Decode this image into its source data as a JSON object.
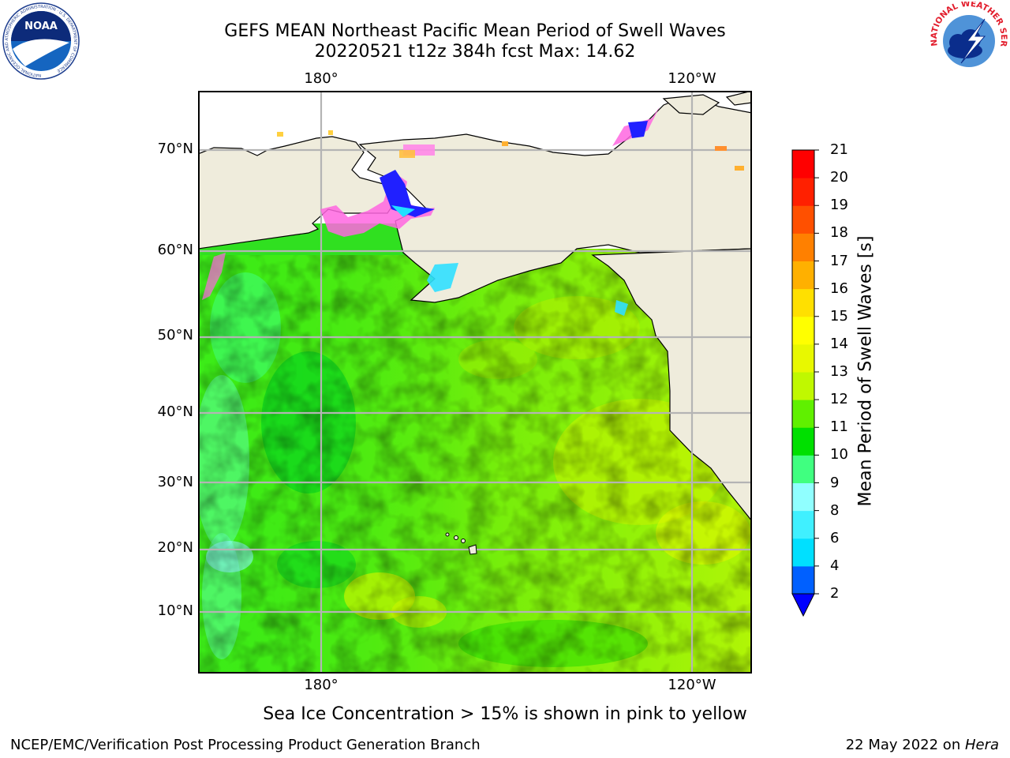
{
  "title": {
    "line1": "GEFS MEAN Northeast Pacific Mean Period of Swell Waves",
    "line2": "20220521 t12z 384h fcst   Max: 14.62"
  },
  "logos": {
    "noaa_text": "NOAA",
    "noaa_ring_text": "NATIONAL OCEANIC AND ATMOSPHERIC ADMINISTRATION · U.S. DEPARTMENT OF COMMERCE",
    "nws_ring_text": "NATIONAL WEATHER SERVICE"
  },
  "map": {
    "lon_labels": [
      "180°",
      "120°W"
    ],
    "lat_labels": [
      "70°N",
      "60°N",
      "50°N",
      "40°N",
      "30°N",
      "20°N",
      "10°N"
    ],
    "lon_range_deg": [
      160,
      250
    ],
    "lat_range_deg": [
      2,
      76
    ],
    "gridlines_lon": [
      180,
      240
    ],
    "gridlines_lat": [
      10,
      20,
      30,
      40,
      50,
      60,
      70
    ],
    "land_color": "#efecdc",
    "grid_color": "#b4b4b4"
  },
  "colorbar": {
    "title": "Mean Period of Swell Waves [s]",
    "tick_labels": [
      "21",
      "20",
      "19",
      "18",
      "17",
      "16",
      "15",
      "14",
      "13",
      "12",
      "11",
      "10",
      "9",
      "8",
      "6",
      "4",
      "2"
    ],
    "levels": [
      2,
      4,
      6,
      8,
      9,
      10,
      11,
      12,
      13,
      14,
      15,
      16,
      17,
      18,
      19,
      20,
      21
    ],
    "colors": [
      "#0060ff",
      "#00e0ff",
      "#40f0ff",
      "#90ffff",
      "#40ff80",
      "#00e000",
      "#60f000",
      "#c0f800",
      "#e8f800",
      "#ffff00",
      "#ffe000",
      "#ffb000",
      "#ff8000",
      "#ff5000",
      "#ff2000",
      "#ff0000"
    ],
    "under_color": "#0000ff"
  },
  "footnote": "Sea Ice Concentration > 15% is shown in pink to yellow",
  "footer": {
    "left": "NCEP/EMC/Verification Post Processing Product Generation Branch",
    "right_date": "22 May 2022 on ",
    "right_host": "Hera"
  }
}
